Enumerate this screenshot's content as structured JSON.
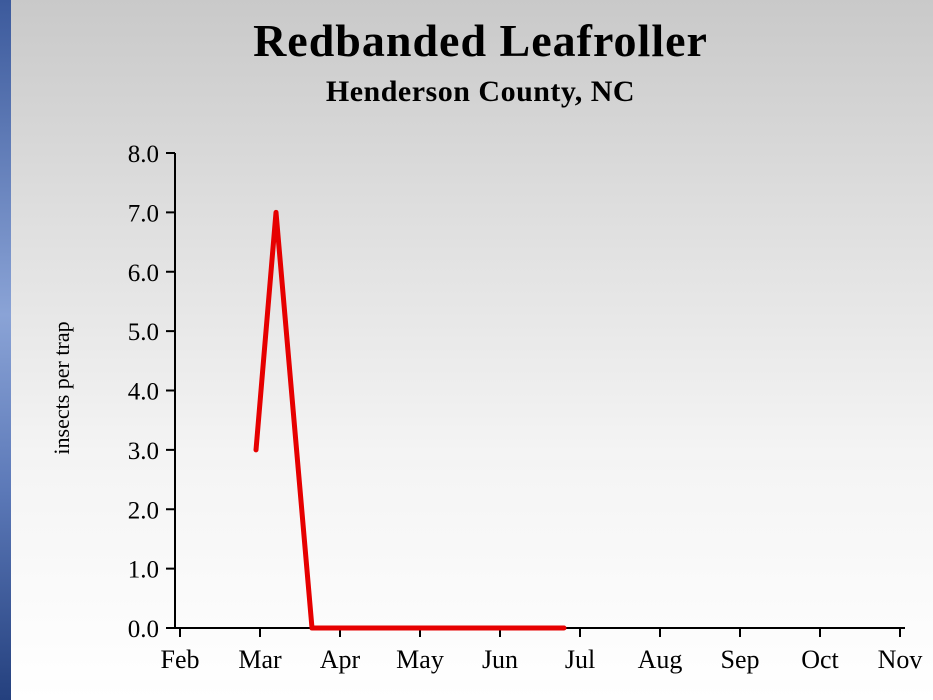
{
  "page": {
    "accent_color": "#3c5a9c"
  },
  "chart_data": {
    "type": "line",
    "title": "Redbanded Leafroller",
    "subtitle": "Henderson County, NC",
    "xlabel": "",
    "ylabel": "insects per trap",
    "xlim": [
      2,
      11
    ],
    "ylim": [
      0,
      8
    ],
    "grid": false,
    "legend": "none",
    "x_tick_labels": [
      "Feb",
      "Mar",
      "Apr",
      "May",
      "Jun",
      "Jul",
      "Aug",
      "Sep",
      "Oct",
      "Nov"
    ],
    "x_tick_months": [
      2,
      3,
      4,
      5,
      6,
      7,
      8,
      9,
      10,
      11
    ],
    "y_tick_labels": [
      "0.0",
      "1.0",
      "2.0",
      "3.0",
      "4.0",
      "5.0",
      "6.0",
      "7.0",
      "8.0"
    ],
    "y_tick_values": [
      0,
      1,
      2,
      3,
      4,
      5,
      6,
      7,
      8
    ],
    "series": [
      {
        "name": "insects per trap",
        "color": "#e60000",
        "points": [
          [
            2.95,
            3.0
          ],
          [
            3.2,
            7.0
          ],
          [
            3.65,
            0.0
          ],
          [
            4.0,
            0.0
          ],
          [
            4.25,
            0.0
          ],
          [
            4.5,
            0.0
          ],
          [
            4.75,
            0.0
          ],
          [
            5.0,
            0.0
          ],
          [
            5.25,
            0.0
          ],
          [
            5.5,
            0.0
          ],
          [
            5.75,
            0.0
          ],
          [
            6.0,
            0.0
          ],
          [
            6.25,
            0.0
          ],
          [
            6.5,
            0.0
          ],
          [
            6.8,
            0.0
          ]
        ]
      }
    ]
  }
}
